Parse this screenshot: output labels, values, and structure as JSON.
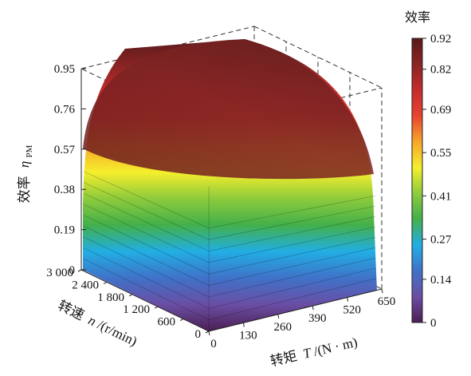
{
  "chart_data": {
    "type": "surface3d",
    "zlabel": {
      "text": "效率",
      "symbol": "η",
      "subscript": "PM"
    },
    "xlabel": {
      "text": "转矩",
      "symbol": "T",
      "unit": "/(N · m)"
    },
    "ylabel": {
      "text": "转速",
      "symbol": "n",
      "unit": "/(r/min)"
    },
    "z_ticks": [
      "0",
      "0.19",
      "0.38",
      "0.57",
      "0.76",
      "0.95"
    ],
    "x_ticks": [
      "0",
      "130",
      "260",
      "390",
      "520",
      "650"
    ],
    "y_ticks": [
      "0",
      "600",
      "1 200",
      "1 800",
      "2 400",
      "3 000"
    ],
    "colorbar": {
      "title": "效率",
      "ticks": [
        "0",
        "0.14",
        "0.27",
        "0.41",
        "0.55",
        "0.69",
        "0.82",
        "0.92"
      ],
      "range": [
        0,
        0.92
      ]
    },
    "xlim": [
      0,
      650
    ],
    "ylim": [
      0,
      3000
    ],
    "zlim": [
      0,
      0.95
    ],
    "grid": false,
    "colormap": [
      "#4b1e52",
      "#6a4ea4",
      "#3f72c8",
      "#22aee4",
      "#43b04a",
      "#8ecb3c",
      "#f6ee2c",
      "#f7a62a",
      "#e8432e",
      "#c62c2c",
      "#8a2424",
      "#5a1a1a"
    ]
  }
}
